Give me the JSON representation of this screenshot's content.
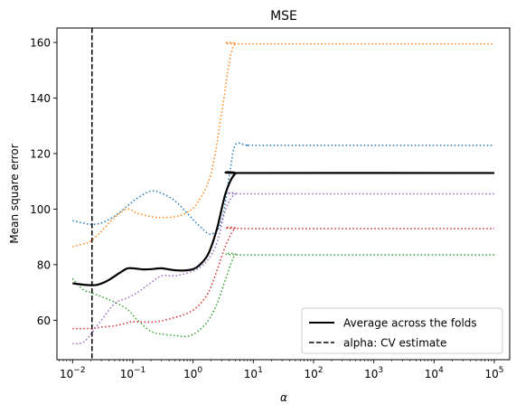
{
  "chart_data": {
    "type": "line",
    "title": "MSE",
    "xlabel": "α",
    "ylabel": "Mean square error",
    "x_scale": "log",
    "xlim": [
      0.0055,
      180000
    ],
    "ylim": [
      45.8,
      165.2
    ],
    "grid": false,
    "legend_position": "lower-right",
    "x_ticks": [
      {
        "value": 0.01,
        "base": "10",
        "exp": "−2"
      },
      {
        "value": 0.1,
        "base": "10",
        "exp": "−1"
      },
      {
        "value": 1,
        "base": "10",
        "exp": "0"
      },
      {
        "value": 10,
        "base": "10",
        "exp": "1"
      },
      {
        "value": 100,
        "base": "10",
        "exp": "2"
      },
      {
        "value": 1000,
        "base": "10",
        "exp": "3"
      },
      {
        "value": 10000,
        "base": "10",
        "exp": "4"
      },
      {
        "value": 100000,
        "base": "10",
        "exp": "5"
      }
    ],
    "y_ticks": [
      60,
      80,
      100,
      120,
      140,
      160
    ],
    "series": [
      {
        "color": "#1f77b4",
        "style": "dotted",
        "x": [
          0.01,
          0.015,
          0.02,
          0.03,
          0.05,
          0.08,
          0.12,
          0.2,
          0.3,
          0.5,
          0.8,
          1.2,
          2,
          3,
          4,
          5,
          8,
          20,
          100000
        ],
        "y": [
          95.8,
          95.0,
          94.5,
          95.0,
          97.5,
          101.0,
          104.0,
          106.5,
          105.7,
          103.0,
          98.5,
          94.5,
          91.0,
          96.0,
          112.0,
          123.0,
          123.0,
          123.0,
          123.0
        ]
      },
      {
        "color": "#ff7f0e",
        "style": "dotted",
        "x": [
          0.01,
          0.015,
          0.02,
          0.03,
          0.05,
          0.08,
          0.12,
          0.2,
          0.3,
          0.5,
          0.8,
          1.2,
          2,
          3,
          4,
          5,
          8,
          100000
        ],
        "y": [
          86.5,
          87.5,
          88.5,
          92.0,
          97.0,
          100.0,
          98.5,
          97.3,
          97.0,
          97.3,
          98.8,
          102.5,
          113.0,
          135.0,
          153.0,
          159.5,
          159.5,
          159.5
        ]
      },
      {
        "color": "#2ca02c",
        "style": "dotted",
        "x": [
          0.01,
          0.015,
          0.02,
          0.03,
          0.05,
          0.08,
          0.12,
          0.2,
          0.3,
          0.5,
          0.8,
          1.2,
          1.8,
          2.5,
          3.5,
          5,
          8,
          100000
        ],
        "y": [
          75.0,
          71.0,
          70.0,
          68.5,
          66.5,
          64.0,
          60.0,
          56.0,
          55.0,
          54.5,
          54.2,
          56.0,
          60.0,
          66.0,
          75.0,
          83.5,
          83.5,
          83.5
        ]
      },
      {
        "color": "#d62728",
        "style": "dotted",
        "x": [
          0.01,
          0.015,
          0.02,
          0.03,
          0.05,
          0.08,
          0.1,
          0.2,
          0.3,
          0.5,
          0.8,
          1.2,
          1.8,
          2.5,
          3.5,
          5,
          8,
          100000
        ],
        "y": [
          57.0,
          57.0,
          57.0,
          57.5,
          58.0,
          59.0,
          59.5,
          59.3,
          59.8,
          61.0,
          62.5,
          65.0,
          70.0,
          78.0,
          87.0,
          93.0,
          93.0,
          93.0
        ]
      },
      {
        "color": "#9467bd",
        "style": "dotted",
        "x": [
          0.01,
          0.015,
          0.02,
          0.03,
          0.05,
          0.08,
          0.12,
          0.2,
          0.3,
          0.5,
          0.8,
          1.2,
          1.8,
          2.5,
          3.5,
          5,
          8,
          100000
        ],
        "y": [
          51.5,
          52.0,
          55.0,
          60.0,
          66.0,
          68.0,
          70.0,
          73.5,
          76.0,
          76.0,
          77.0,
          78.5,
          82.0,
          88.0,
          100.0,
          105.5,
          105.5,
          105.5
        ]
      },
      {
        "name": "Average across the folds",
        "color": "#000000",
        "style": "solid",
        "x": [
          0.01,
          0.015,
          0.02,
          0.025,
          0.03,
          0.04,
          0.06,
          0.08,
          0.1,
          0.15,
          0.2,
          0.3,
          0.4,
          0.5,
          0.7,
          1,
          1.3,
          1.8,
          2.5,
          3.5,
          5,
          8,
          100000
        ],
        "y": [
          73.3,
          72.8,
          72.6,
          72.7,
          73.2,
          74.5,
          77.0,
          78.6,
          78.7,
          78.3,
          78.4,
          78.7,
          78.3,
          78.0,
          77.9,
          78.4,
          80.0,
          84.0,
          93.0,
          106.0,
          112.7,
          113.0,
          113.0
        ]
      }
    ],
    "vline": {
      "name": "alpha: CV estimate",
      "x": 0.021,
      "color": "#000000",
      "style": "dashed"
    },
    "legend": [
      {
        "label": "Average across the folds",
        "style": "solid"
      },
      {
        "label": "alpha: CV estimate",
        "style": "dashed"
      }
    ]
  }
}
